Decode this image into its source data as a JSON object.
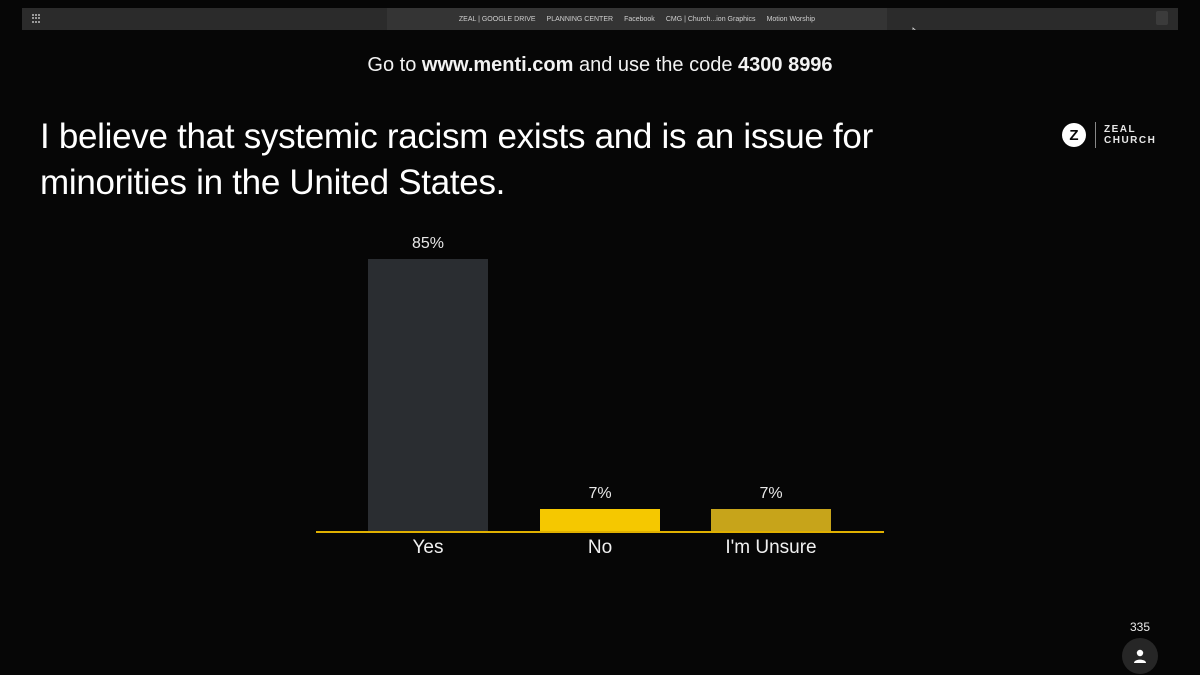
{
  "browser": {
    "bookmarks": [
      "ZEAL | GOOGLE DRIVE",
      "PLANNING CENTER",
      "Facebook",
      "CMG | Church...ion Graphics",
      "Motion Worship"
    ]
  },
  "slide": {
    "instruction_prefix": "Go to",
    "instruction_url": "www.menti.com",
    "instruction_middle": "and use the code",
    "instruction_code": "4300 8996",
    "question_line1": "I believe that systemic racism exists and is an issue for",
    "question_line2": "minorities in the United States.",
    "logo_mark": "Z",
    "logo_line1": "ZEAL",
    "logo_line2": "CHURCH",
    "participant_count": "335"
  },
  "colors": {
    "yes_bar": "#2a2d31",
    "no_bar": "#f5c800",
    "unsure_bar": "#c7a41a",
    "baseline": "#e0b000"
  },
  "chart_data": {
    "type": "bar",
    "categories": [
      "Yes",
      "No",
      "I'm Unsure"
    ],
    "values": [
      85,
      7,
      7
    ],
    "value_labels": [
      "85%",
      "7%",
      "7%"
    ],
    "ylim": [
      0,
      85
    ],
    "grid": false
  }
}
